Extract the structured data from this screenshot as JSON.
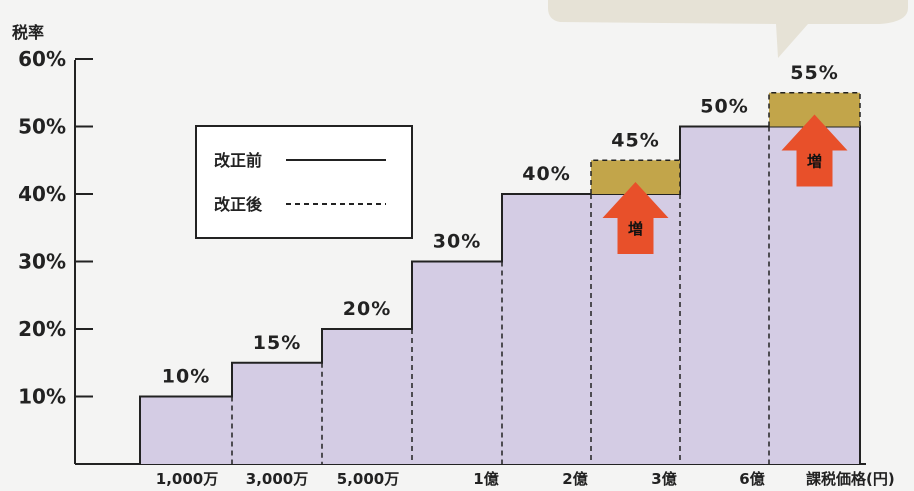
{
  "chart_data": {
    "type": "bar",
    "title": "税率",
    "y_ticks": [
      "60%",
      "50%",
      "40%",
      "30%",
      "20%",
      "10%"
    ],
    "ylim": [
      0,
      60
    ],
    "x_tick_labels": [
      "1,000万",
      "3,000万",
      "5,000万",
      "1億",
      "2億",
      "3億",
      "6億"
    ],
    "x_axis_label": "課税価格(円)",
    "series": [
      {
        "name": "改正前",
        "line_style": "solid",
        "values": [
          10,
          15,
          20,
          30,
          40,
          40,
          50,
          50
        ]
      },
      {
        "name": "改正後",
        "line_style": "dashed",
        "values": [
          10,
          15,
          20,
          30,
          40,
          45,
          50,
          55
        ]
      }
    ],
    "value_labels": [
      "10%",
      "15%",
      "20%",
      "30%",
      "40%",
      "45%",
      "50%",
      "55%"
    ],
    "increase_label": "増",
    "legend_position": "upper-left inside",
    "grid": false
  },
  "colors": {
    "bar_fill": "#d4cce4",
    "increase_fill": "#c2a54a",
    "arrow": "#e8502a",
    "axis": "#222222",
    "callout": "#e6e2d6"
  }
}
